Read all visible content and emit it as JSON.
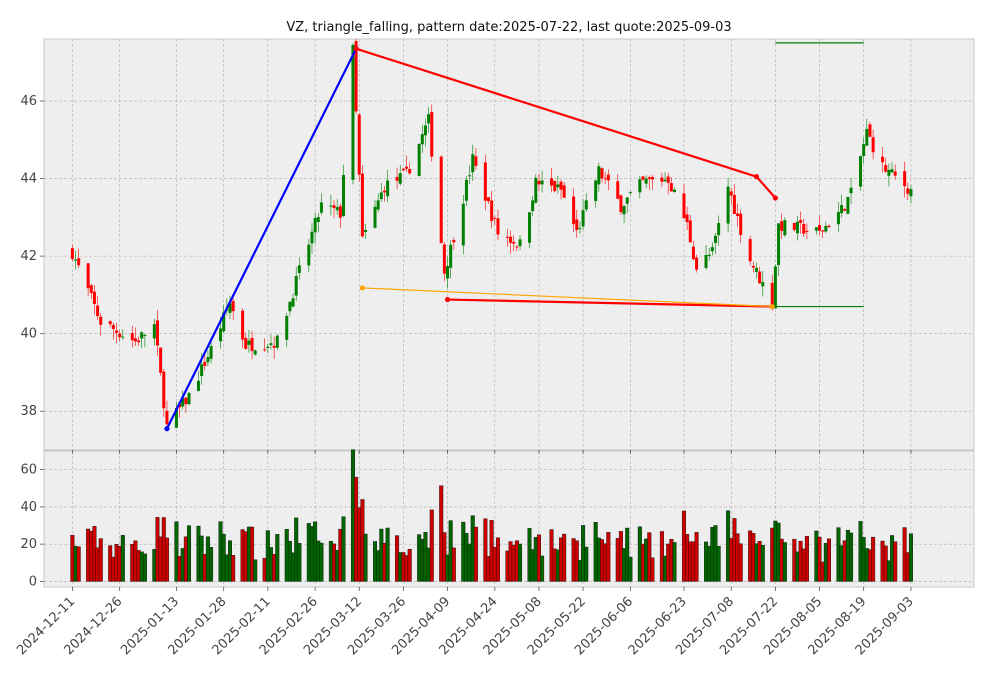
{
  "chart_data": {
    "type": "candlestick",
    "title": "VZ, triangle_falling, pattern date:2025-07-22, last quote:2025-09-03",
    "price_axis": {
      "ylim": [
        37.0,
        47.6
      ],
      "ticks": [
        38,
        40,
        42,
        44,
        46
      ]
    },
    "volume_axis": {
      "ylim": [
        -3,
        70
      ],
      "ticks": [
        0,
        20,
        40,
        60
      ]
    },
    "x_range": [
      "2024-12-02",
      "2025-09-23"
    ],
    "x_ticks": [
      "2024-12-11",
      "2024-12-26",
      "2025-01-13",
      "2025-01-28",
      "2025-02-11",
      "2025-02-26",
      "2025-03-12",
      "2025-03-26",
      "2025-04-09",
      "2025-04-24",
      "2025-05-08",
      "2025-05-22",
      "2025-06-06",
      "2025-06-23",
      "2025-07-08",
      "2025-07-22",
      "2025-08-05",
      "2025-08-19",
      "2025-09-03"
    ],
    "grid": true,
    "colors": {
      "up": "#008000",
      "down": "#ff0000",
      "blue_line": "#0000ff",
      "red_line": "#ff0000",
      "orange_line": "#ffa500",
      "level_line": "#008000",
      "panel_bg": "#eeeeee"
    },
    "anchors": [
      {
        "date": "2024-12-11",
        "close": 42.1
      },
      {
        "date": "2024-12-20",
        "close": 40.3
      },
      {
        "date": "2024-12-31",
        "close": 39.8
      },
      {
        "date": "2025-01-06",
        "close": 40.2
      },
      {
        "date": "2025-01-10",
        "close": 37.6
      },
      {
        "date": "2025-01-17",
        "close": 38.4
      },
      {
        "date": "2025-01-24",
        "close": 39.6
      },
      {
        "date": "2025-01-30",
        "close": 40.8
      },
      {
        "date": "2025-02-04",
        "close": 39.7
      },
      {
        "date": "2025-02-14",
        "close": 39.8
      },
      {
        "date": "2025-02-21",
        "close": 41.6
      },
      {
        "date": "2025-02-28",
        "close": 43.3
      },
      {
        "date": "2025-03-06",
        "close": 43.1
      },
      {
        "date": "2025-03-10",
        "close": 47.3
      },
      {
        "date": "2025-03-13",
        "close": 42.4
      },
      {
        "date": "2025-03-20",
        "close": 43.8
      },
      {
        "date": "2025-03-27",
        "close": 44.1
      },
      {
        "date": "2025-04-03",
        "close": 45.5
      },
      {
        "date": "2025-04-08",
        "close": 41.6
      },
      {
        "date": "2025-04-10",
        "close": 42.2
      },
      {
        "date": "2025-04-17",
        "close": 44.5
      },
      {
        "date": "2025-04-25",
        "close": 42.6
      },
      {
        "date": "2025-05-02",
        "close": 42.3
      },
      {
        "date": "2025-05-07",
        "close": 43.9
      },
      {
        "date": "2025-05-15",
        "close": 43.7
      },
      {
        "date": "2025-05-20",
        "close": 42.6
      },
      {
        "date": "2025-05-27",
        "close": 44.2
      },
      {
        "date": "2025-06-03",
        "close": 43.3
      },
      {
        "date": "2025-06-10",
        "close": 43.9
      },
      {
        "date": "2025-06-18",
        "close": 44.0
      },
      {
        "date": "2025-06-24",
        "close": 42.8
      },
      {
        "date": "2025-06-27",
        "close": 41.7
      },
      {
        "date": "2025-07-02",
        "close": 42.1
      },
      {
        "date": "2025-07-07",
        "close": 43.8
      },
      {
        "date": "2025-07-11",
        "close": 42.7
      },
      {
        "date": "2025-07-14",
        "close": 41.9
      },
      {
        "date": "2025-07-21",
        "close": 40.8
      },
      {
        "date": "2025-07-23",
        "close": 42.8
      },
      {
        "date": "2025-07-31",
        "close": 42.7
      },
      {
        "date": "2025-08-05",
        "close": 42.6
      },
      {
        "date": "2025-08-12",
        "close": 43.2
      },
      {
        "date": "2025-08-15",
        "close": 43.6
      },
      {
        "date": "2025-08-20",
        "close": 45.2
      },
      {
        "date": "2025-08-25",
        "close": 44.3
      },
      {
        "date": "2025-09-03",
        "close": 43.7
      }
    ],
    "overlays": {
      "blue_line": [
        {
          "date": "2025-01-10",
          "price": 37.55
        },
        {
          "date": "2025-03-11",
          "price": 47.35
        }
      ],
      "red_upper": [
        {
          "date": "2025-03-11",
          "price": 47.35
        },
        {
          "date": "2025-07-16",
          "price": 44.05
        },
        {
          "date": "2025-07-22",
          "price": 43.5
        }
      ],
      "red_lower": [
        {
          "date": "2025-04-09",
          "price": 40.88
        },
        {
          "date": "2025-07-21",
          "price": 40.7
        }
      ],
      "orange_line": [
        {
          "date": "2025-03-13",
          "price": 41.18
        },
        {
          "date": "2025-07-21",
          "price": 40.7
        }
      ],
      "level_high": {
        "from": "2025-07-22",
        "to": "2025-08-19",
        "price": 47.5
      },
      "level_low": {
        "from": "2025-07-22",
        "to": "2025-08-19",
        "price": 40.7
      }
    }
  }
}
